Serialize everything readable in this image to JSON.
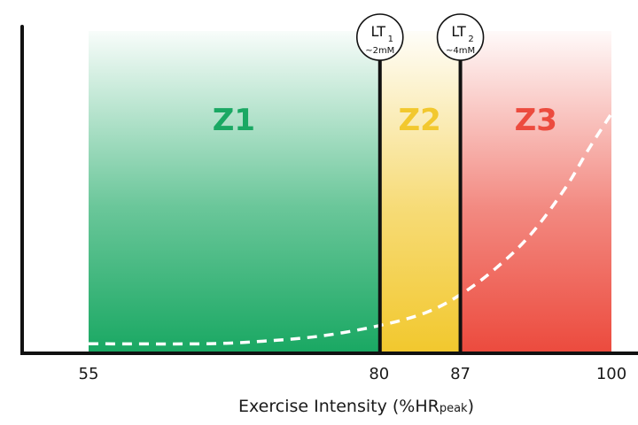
{
  "chart_data": {
    "type": "area",
    "title": "",
    "xlabel": {
      "main": "Exercise Intensity (%HR",
      "subscript": "peak",
      "close": ")"
    },
    "ylabel": "",
    "xlim": [
      55,
      100
    ],
    "xticks": [
      "55",
      "80",
      "87",
      "100"
    ],
    "zones": [
      {
        "label": "Z1",
        "from": 55,
        "to": 80,
        "color": "#1aa863"
      },
      {
        "label": "Z2",
        "from": 80,
        "to": 87,
        "color": "#f2c82e"
      },
      {
        "label": "Z3",
        "from": 87,
        "to": 100,
        "color": "#ec4b3e"
      }
    ],
    "thresholds": [
      {
        "label": "LT",
        "subscript": "1",
        "note": "~2mM",
        "x": 80
      },
      {
        "label": "LT",
        "subscript": "2",
        "note": "~4mM",
        "x": 87
      }
    ],
    "series": [
      {
        "style": "dashed",
        "color": "#ffffff",
        "x": [
          55,
          65,
          70,
          75,
          80,
          84,
          87,
          90,
          93,
          96,
          98,
          100
        ],
        "y": [
          0.03,
          0.03,
          0.04,
          0.06,
          0.1,
          0.15,
          0.22,
          0.32,
          0.45,
          0.63,
          0.78,
          0.92
        ]
      }
    ],
    "grid": false
  }
}
